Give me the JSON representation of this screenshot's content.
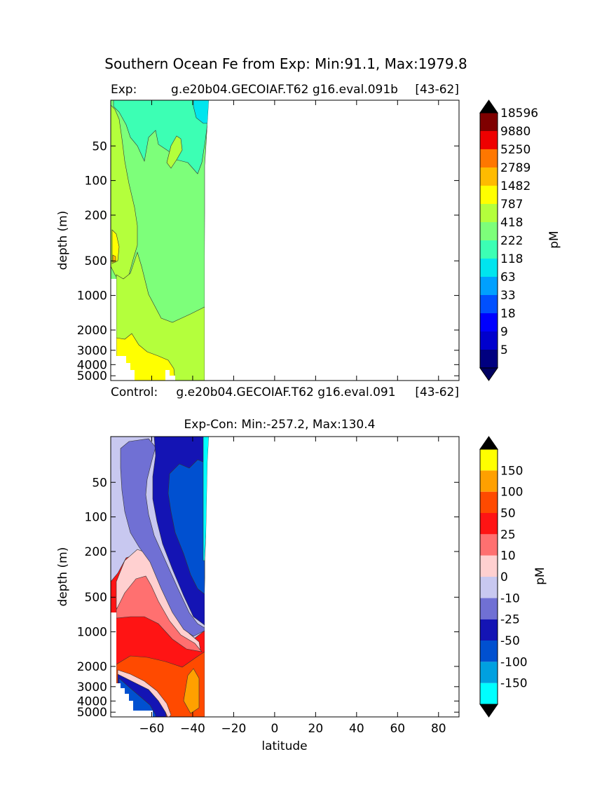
{
  "figure": {
    "suptitle": "Southern Ocean Fe from Exp: Min:91.1, Max:1979.8"
  },
  "chart_data": [
    {
      "type": "heatmap",
      "plot": "top",
      "title_left": "Exp:",
      "title_center": "g.e20b04.GECOIAF.T62 g16.eval.091b",
      "title_right": "[43-62]",
      "ylabel": "depth (m)",
      "y_ticks": [
        "50",
        "100",
        "200",
        "500",
        "1000",
        "2000",
        "3000",
        "4000",
        "5000"
      ],
      "y_tick_values": [
        50,
        100,
        200,
        500,
        1000,
        2000,
        3000,
        4000,
        5000
      ],
      "x_range": [
        -80,
        90
      ],
      "y_range": [
        20,
        5500
      ],
      "data_lat_range": [
        -78,
        -33
      ],
      "colorbar": {
        "label": "pM",
        "levels": [
          "5",
          "9",
          "18",
          "33",
          "63",
          "118",
          "222",
          "418",
          "787",
          "1482",
          "2789",
          "5250",
          "9880",
          "18596"
        ],
        "colors": [
          "#000080",
          "#0000cd",
          "#0000ff",
          "#0050ff",
          "#00a0ff",
          "#00e5ee",
          "#3cffb4",
          "#7dff7a",
          "#b4ff3c",
          "#ffff00",
          "#ffbb00",
          "#ff7700",
          "#ee0000",
          "#7f0000"
        ],
        "under_color": "#000060",
        "over_color": "#000000"
      }
    },
    {
      "type": "heatmap",
      "plot": "bottom",
      "title_left": "Control:",
      "title_center": "g.e20b04.GECOIAF.T62 g16.eval.091",
      "title_right": "[43-62]",
      "title": "Exp-Con: Min:-257.2, Max:130.4",
      "ylabel": "depth (m)",
      "xlabel": "latitude",
      "x_ticks": [
        "−60",
        "−40",
        "−20",
        "0",
        "20",
        "40",
        "60",
        "80"
      ],
      "x_tick_values": [
        -60,
        -40,
        -20,
        0,
        20,
        40,
        60,
        80
      ],
      "y_ticks": [
        "50",
        "100",
        "200",
        "500",
        "1000",
        "2000",
        "3000",
        "4000",
        "5000"
      ],
      "y_tick_values": [
        50,
        100,
        200,
        500,
        1000,
        2000,
        3000,
        4000,
        5000
      ],
      "x_range": [
        -80,
        90
      ],
      "y_range": [
        20,
        5500
      ],
      "colorbar": {
        "label": "pM",
        "levels": [
          "-150",
          "-100",
          "-50",
          "-25",
          "-10",
          "0",
          "10",
          "25",
          "50",
          "100",
          "150"
        ],
        "colors": [
          "#00ffff",
          "#00a0e0",
          "#0050d0",
          "#1414b4",
          "#7070d4",
          "#c8c8f0",
          "#ffd0d0",
          "#ff7070",
          "#ff1414",
          "#ff4a00",
          "#ffa000",
          "#ffff00"
        ],
        "under_color": "#000000",
        "over_color": "#000000"
      }
    }
  ]
}
